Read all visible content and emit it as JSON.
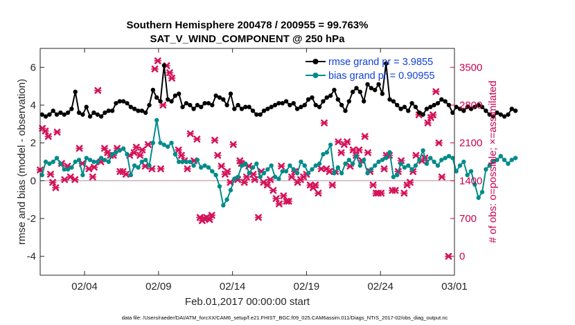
{
  "chart_data": {
    "type": "line",
    "title_line1": "Southern Hemisphere 200478 / 200955 = 99.763%",
    "title_line2": "SAT_V_WIND_COMPONENT @ 250 hPa",
    "xlabel": "Feb.01,2017 00:00:00 start",
    "ylabel": "rmse and bias (model - observation)",
    "ylabel_right": "# of obs: o=possible; ×=assimilated",
    "xlim": [
      1.0,
      29.0
    ],
    "ylim": [
      -5,
      7
    ],
    "ylim_right": [
      -350,
      3850
    ],
    "x_ticks": [
      {
        "value": 4,
        "label": "02/04"
      },
      {
        "value": 9,
        "label": "02/09"
      },
      {
        "value": 14,
        "label": "02/14"
      },
      {
        "value": 19,
        "label": "02/19"
      },
      {
        "value": 24,
        "label": "02/24"
      },
      {
        "value": 29,
        "label": "03/01"
      }
    ],
    "y_ticks": [
      {
        "value": 6,
        "label": "6"
      },
      {
        "value": 4,
        "label": "4"
      },
      {
        "value": 2,
        "label": "2"
      },
      {
        "value": 0,
        "label": "0"
      },
      {
        "value": -2,
        "label": "-2"
      },
      {
        "value": -4,
        "label": "-4"
      }
    ],
    "y_ticks_right": [
      {
        "value": 3500,
        "label": "3500"
      },
      {
        "value": 2800,
        "label": "2800"
      },
      {
        "value": 2100,
        "label": "2100"
      },
      {
        "value": 1400,
        "label": "1400"
      },
      {
        "value": 700,
        "label": "700"
      },
      {
        "value": 0,
        "label": "0"
      }
    ],
    "zero_line": 0,
    "x_start": 1.125,
    "x_step": 0.25,
    "series": [
      {
        "name": "rmse grand pr = 3.9855",
        "color": "#000000",
        "values": [
          3.5,
          3.4,
          3.5,
          3.7,
          3.5,
          3.6,
          3.5,
          3.6,
          3.8,
          4.7,
          3.6,
          3.5,
          3.9,
          3.4,
          3.6,
          3.5,
          3.4,
          3.6,
          3.7,
          3.7,
          4.1,
          4.2,
          4.2,
          4.1,
          3.9,
          3.8,
          3.7,
          3.7,
          3.6,
          4.0,
          4.8,
          4.4,
          4.2,
          6.1,
          4.3,
          4.2,
          4.5,
          4.6,
          3.9,
          4.1,
          4.0,
          3.8,
          4.0,
          3.9,
          4.1,
          4.1,
          4.0,
          4.5,
          4.4,
          4.3,
          4.0,
          4.6,
          3.8,
          4.0,
          3.8,
          3.9,
          3.9,
          3.7,
          3.5,
          3.5,
          3.7,
          3.8,
          3.9,
          4.0,
          4.1,
          4.1,
          4.2,
          4.0,
          4.1,
          3.8,
          3.9,
          4.0,
          4.3,
          4.4,
          4.0,
          3.9,
          4.2,
          4.4,
          4.5,
          4.8,
          4.3,
          4.0,
          3.7,
          4.2,
          4.7,
          4.9,
          4.7,
          4.2,
          5.1,
          4.9,
          4.8,
          5.1,
          4.6,
          6.2,
          4.3,
          4.2,
          4.0,
          3.8,
          3.9,
          3.7,
          4.1,
          3.9,
          3.6,
          3.5,
          3.8,
          3.9,
          4.0,
          4.1,
          4.3,
          4.2,
          4.0,
          3.6,
          3.9,
          3.8,
          3.7,
          3.9,
          3.8,
          3.9,
          4.0,
          3.9,
          3.7,
          3.5,
          3.4,
          3.6,
          3.5,
          3.4,
          3.5,
          3.8,
          3.7
        ],
        "marker": "circle"
      },
      {
        "name": "bias grand pr = 0.90955",
        "color": "#008b8b",
        "values": [
          0.3,
          1.0,
          0.9,
          1.0,
          1.2,
          0.9,
          0.6,
          0.6,
          0.7,
          1.0,
          1.1,
          0.3,
          1.2,
          1.1,
          1.0,
          1.0,
          1.2,
          1.1,
          1.0,
          1.4,
          1.5,
          1.6,
          1.7,
          1.4,
          0.3,
          0.8,
          0.7,
          1.0,
          1.1,
          0.8,
          2.0,
          3.2,
          2.0,
          1.9,
          1.8,
          2.0,
          1.4,
          1.0,
          1.0,
          1.0,
          1.0,
          0.8,
          1.1,
          0.7,
          0.8,
          0.7,
          0.5,
          0.3,
          -0.3,
          -1.3,
          -1.0,
          -0.5,
          0.1,
          0.2,
          0.8,
          0.9,
          0.4,
          0.7,
          0.9,
          0.2,
          0.4,
          0.6,
          0.8,
          0.2,
          0.1,
          0.5,
          0.5,
          0.8,
          0.6,
          0.4,
          1.0,
          0.8,
          0.4,
          0.6,
          0.8,
          0.9,
          1.4,
          1.5,
          1.9,
          0.4,
          0.7,
          0.4,
          0.9,
          1.1,
          0.9,
          1.3,
          0.8,
          1.1,
          0.4,
          0.6,
          0.8,
          1.0,
          1.1,
          1.2,
          1.5,
          0.2,
          0.3,
          0.9,
          0.7,
          0.8,
          0.6,
          0.8,
          1.1,
          1.6,
          0.9,
          1.2,
          1.0,
          0.8,
          1.1,
          1.2,
          1.3,
          1.2,
          0.5,
          0.8,
          1.0,
          0.3,
          0.5,
          -0.2,
          -0.9,
          -0.6,
          0.6,
          0.8,
          1.0,
          1.1,
          1.3,
          1.1,
          0.9,
          1.1,
          1.2
        ],
        "marker": "circle"
      }
    ],
    "obs_assimilated": [
      {
        "x": 1.0,
        "v": 1600
      },
      {
        "x": 1.15,
        "v": 2370
      },
      {
        "x": 1.35,
        "v": 2320
      },
      {
        "x": 1.55,
        "v": 2220
      },
      {
        "x": 1.7,
        "v": 1520
      },
      {
        "x": 1.85,
        "v": 1370
      },
      {
        "x": 2.05,
        "v": 1270
      },
      {
        "x": 2.15,
        "v": 2300
      },
      {
        "x": 2.45,
        "v": 1720
      },
      {
        "x": 2.65,
        "v": 1420
      },
      {
        "x": 2.85,
        "v": 1670
      },
      {
        "x": 3.05,
        "v": 1470
      },
      {
        "x": 3.35,
        "v": 1420
      },
      {
        "x": 3.65,
        "v": 2000
      },
      {
        "x": 3.85,
        "v": 1720
      },
      {
        "x": 4.3,
        "v": 1620
      },
      {
        "x": 4.55,
        "v": 1470
      },
      {
        "x": 4.65,
        "v": 1650
      },
      {
        "x": 4.9,
        "v": 3070
      },
      {
        "x": 5.1,
        "v": 1750
      },
      {
        "x": 5.35,
        "v": 2000
      },
      {
        "x": 5.55,
        "v": 1920
      },
      {
        "x": 5.75,
        "v": 1870
      },
      {
        "x": 5.95,
        "v": 1870
      },
      {
        "x": 6.2,
        "v": 2000
      },
      {
        "x": 6.4,
        "v": 1570
      },
      {
        "x": 6.6,
        "v": 1570
      },
      {
        "x": 6.8,
        "v": 1520
      },
      {
        "x": 7.05,
        "v": 1870
      },
      {
        "x": 7.35,
        "v": 1920
      },
      {
        "x": 7.5,
        "v": 2020
      },
      {
        "x": 7.75,
        "v": 1870
      },
      {
        "x": 7.9,
        "v": 1970
      },
      {
        "x": 8.1,
        "v": 1670
      },
      {
        "x": 8.3,
        "v": 2070
      },
      {
        "x": 8.55,
        "v": 1620
      },
      {
        "x": 8.75,
        "v": 3470
      },
      {
        "x": 8.95,
        "v": 3620
      },
      {
        "x": 9.15,
        "v": 1620
      },
      {
        "x": 9.3,
        "v": 2800
      },
      {
        "x": 9.55,
        "v": 3530
      },
      {
        "x": 9.75,
        "v": 3400
      },
      {
        "x": 9.9,
        "v": 3300
      },
      {
        "x": 10.35,
        "v": 1970
      },
      {
        "x": 10.55,
        "v": 1870
      },
      {
        "x": 10.75,
        "v": 1770
      },
      {
        "x": 10.95,
        "v": 1620
      },
      {
        "x": 11.15,
        "v": 2270
      },
      {
        "x": 11.4,
        "v": 1770
      },
      {
        "x": 11.6,
        "v": 2170
      },
      {
        "x": 11.8,
        "v": 720
      },
      {
        "x": 11.95,
        "v": 660
      },
      {
        "x": 12.1,
        "v": 700
      },
      {
        "x": 12.25,
        "v": 720
      },
      {
        "x": 12.45,
        "v": 680
      },
      {
        "x": 12.6,
        "v": 760
      },
      {
        "x": 12.8,
        "v": 2150
      },
      {
        "x": 13.0,
        "v": 1870
      },
      {
        "x": 13.25,
        "v": 1670
      },
      {
        "x": 13.5,
        "v": 1520
      },
      {
        "x": 13.65,
        "v": 1570
      },
      {
        "x": 13.85,
        "v": 1370
      },
      {
        "x": 14.05,
        "v": 2070
      },
      {
        "x": 14.35,
        "v": 1420
      },
      {
        "x": 14.5,
        "v": 1770
      },
      {
        "x": 14.6,
        "v": 1720
      },
      {
        "x": 14.8,
        "v": 1370
      },
      {
        "x": 14.95,
        "v": 1470
      },
      {
        "x": 15.1,
        "v": 1670
      },
      {
        "x": 15.4,
        "v": 1520
      },
      {
        "x": 15.5,
        "v": 1420
      },
      {
        "x": 15.75,
        "v": 720
      },
      {
        "x": 15.95,
        "v": 1570
      },
      {
        "x": 16.1,
        "v": 1370
      },
      {
        "x": 16.35,
        "v": 1320
      },
      {
        "x": 16.55,
        "v": 1420
      },
      {
        "x": 16.75,
        "v": 1220
      },
      {
        "x": 16.95,
        "v": 1070
      },
      {
        "x": 17.15,
        "v": 970
      },
      {
        "x": 17.3,
        "v": 1670
      },
      {
        "x": 17.45,
        "v": 1120
      },
      {
        "x": 17.65,
        "v": 1020
      },
      {
        "x": 17.8,
        "v": 1020
      },
      {
        "x": 18.0,
        "v": 1470
      },
      {
        "x": 18.2,
        "v": 1570
      },
      {
        "x": 18.4,
        "v": 1370
      },
      {
        "x": 18.6,
        "v": 1420
      },
      {
        "x": 18.8,
        "v": 1470
      },
      {
        "x": 19.0,
        "v": 1520
      },
      {
        "x": 19.25,
        "v": 1320
      },
      {
        "x": 19.45,
        "v": 1270
      },
      {
        "x": 19.6,
        "v": 1320
      },
      {
        "x": 19.8,
        "v": 1170
      },
      {
        "x": 20.0,
        "v": 1620
      },
      {
        "x": 20.2,
        "v": 2470
      },
      {
        "x": 20.35,
        "v": 1620
      },
      {
        "x": 20.55,
        "v": 1570
      },
      {
        "x": 20.75,
        "v": 1320
      },
      {
        "x": 20.95,
        "v": 1570
      },
      {
        "x": 21.15,
        "v": 2120
      },
      {
        "x": 21.35,
        "v": 1920
      },
      {
        "x": 21.55,
        "v": 2070
      },
      {
        "x": 21.75,
        "v": 2120
      },
      {
        "x": 21.95,
        "v": 1670
      },
      {
        "x": 22.15,
        "v": 1970
      },
      {
        "x": 22.35,
        "v": 1870
      },
      {
        "x": 22.55,
        "v": 1970
      },
      {
        "x": 22.75,
        "v": 1770
      },
      {
        "x": 22.95,
        "v": 2220
      },
      {
        "x": 23.15,
        "v": 1920
      },
      {
        "x": 23.3,
        "v": 1570
      },
      {
        "x": 23.5,
        "v": 1320
      },
      {
        "x": 23.7,
        "v": 1170
      },
      {
        "x": 23.85,
        "v": 1170
      },
      {
        "x": 24.05,
        "v": 1170
      },
      {
        "x": 24.25,
        "v": 1620
      },
      {
        "x": 24.4,
        "v": 1870
      },
      {
        "x": 24.6,
        "v": 1870
      },
      {
        "x": 24.8,
        "v": 1220
      },
      {
        "x": 25.0,
        "v": 1220
      },
      {
        "x": 25.2,
        "v": 1570
      },
      {
        "x": 25.4,
        "v": 1770
      },
      {
        "x": 25.6,
        "v": 1170
      },
      {
        "x": 25.8,
        "v": 1320
      },
      {
        "x": 26.0,
        "v": 1370
      },
      {
        "x": 26.2,
        "v": 1570
      },
      {
        "x": 26.4,
        "v": 1870
      },
      {
        "x": 26.6,
        "v": 2620
      },
      {
        "x": 26.8,
        "v": 1770
      },
      {
        "x": 27.0,
        "v": 1820
      },
      {
        "x": 27.2,
        "v": 2470
      },
      {
        "x": 27.4,
        "v": 2570
      },
      {
        "x": 27.55,
        "v": 2620
      },
      {
        "x": 27.75,
        "v": 3050
      },
      {
        "x": 27.95,
        "v": 2100
      },
      {
        "x": 28.15,
        "v": 1470
      },
      {
        "x": 28.6,
        "v": 0
      }
    ],
    "legend_position": "top-right",
    "footnote": "data file: /Users/raeder/DAI/ATM_forcXX/CAM6_setup/f.e21.FHIST_BGC.f09_025.CAM6assim.011/Diags_NTrS_2017-02/obs_diag_output.nc"
  },
  "colors": {
    "rmse": "#000000",
    "bias": "#008b8b",
    "obs": "#d4145a",
    "right_axis": "#c8004f",
    "legend_text": "#0f3fd6",
    "zero_line": "#b89aa6"
  }
}
